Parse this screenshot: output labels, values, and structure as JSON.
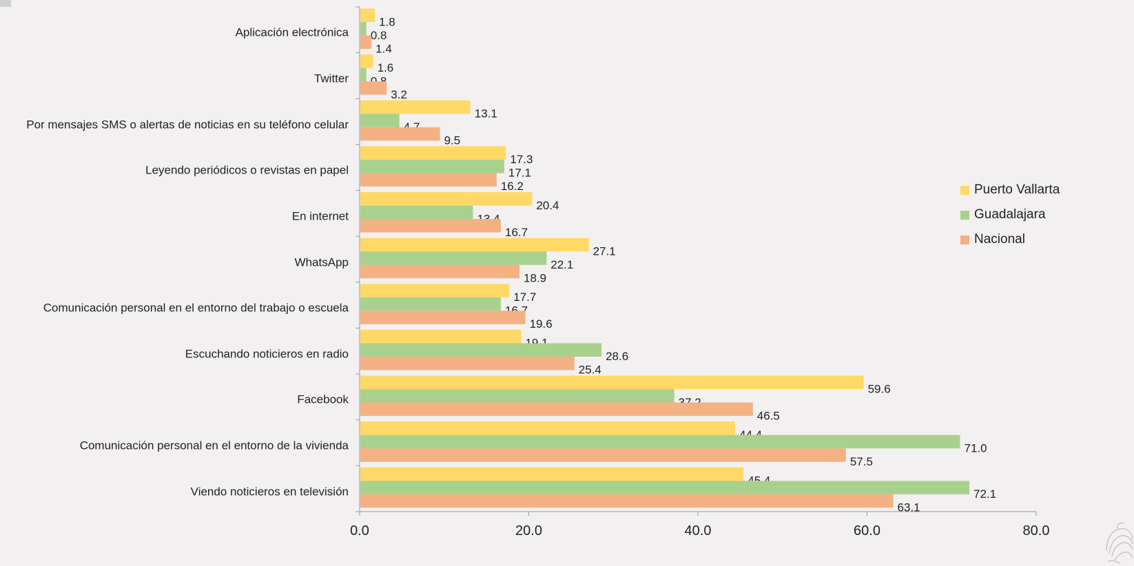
{
  "chart_data": {
    "type": "bar",
    "orientation": "horizontal",
    "categories": [
      "Aplicación electrónica",
      "Twitter",
      "Por mensajes SMS o alertas de noticias en su teléfono celular",
      "Leyendo periódicos o revistas en papel",
      "En internet",
      "WhatsApp",
      "Comunicación personal en el entorno del trabajo o escuela",
      "Escuchando noticieros en radio",
      "Facebook",
      "Comunicación personal en el entorno de la vivienda",
      "Viendo noticieros en televisión"
    ],
    "series": [
      {
        "name": "Puerto Vallarta",
        "color": "#ffd966",
        "values": [
          1.8,
          1.6,
          13.1,
          17.3,
          20.4,
          27.1,
          17.7,
          19.1,
          59.6,
          44.4,
          45.4
        ]
      },
      {
        "name": "Guadalajara",
        "color": "#a9d18e",
        "values": [
          0.8,
          0.8,
          4.7,
          17.1,
          13.4,
          22.1,
          16.7,
          28.6,
          37.2,
          71.0,
          72.1
        ]
      },
      {
        "name": "Nacional",
        "color": "#f4b183",
        "values": [
          1.4,
          3.2,
          9.5,
          16.2,
          16.7,
          18.9,
          19.6,
          25.4,
          46.5,
          57.5,
          63.1
        ]
      }
    ],
    "xlim": [
      0,
      80
    ],
    "xticks": [
      "0.0",
      "20.0",
      "40.0",
      "60.0",
      "80.0"
    ],
    "grid": false,
    "legend_position": "right",
    "title": "",
    "xlabel": "",
    "ylabel": ""
  },
  "colors": {
    "background": "#f2f0f0",
    "axis": "#9a9a9a"
  },
  "icons": {
    "seal": "seal-icon"
  }
}
